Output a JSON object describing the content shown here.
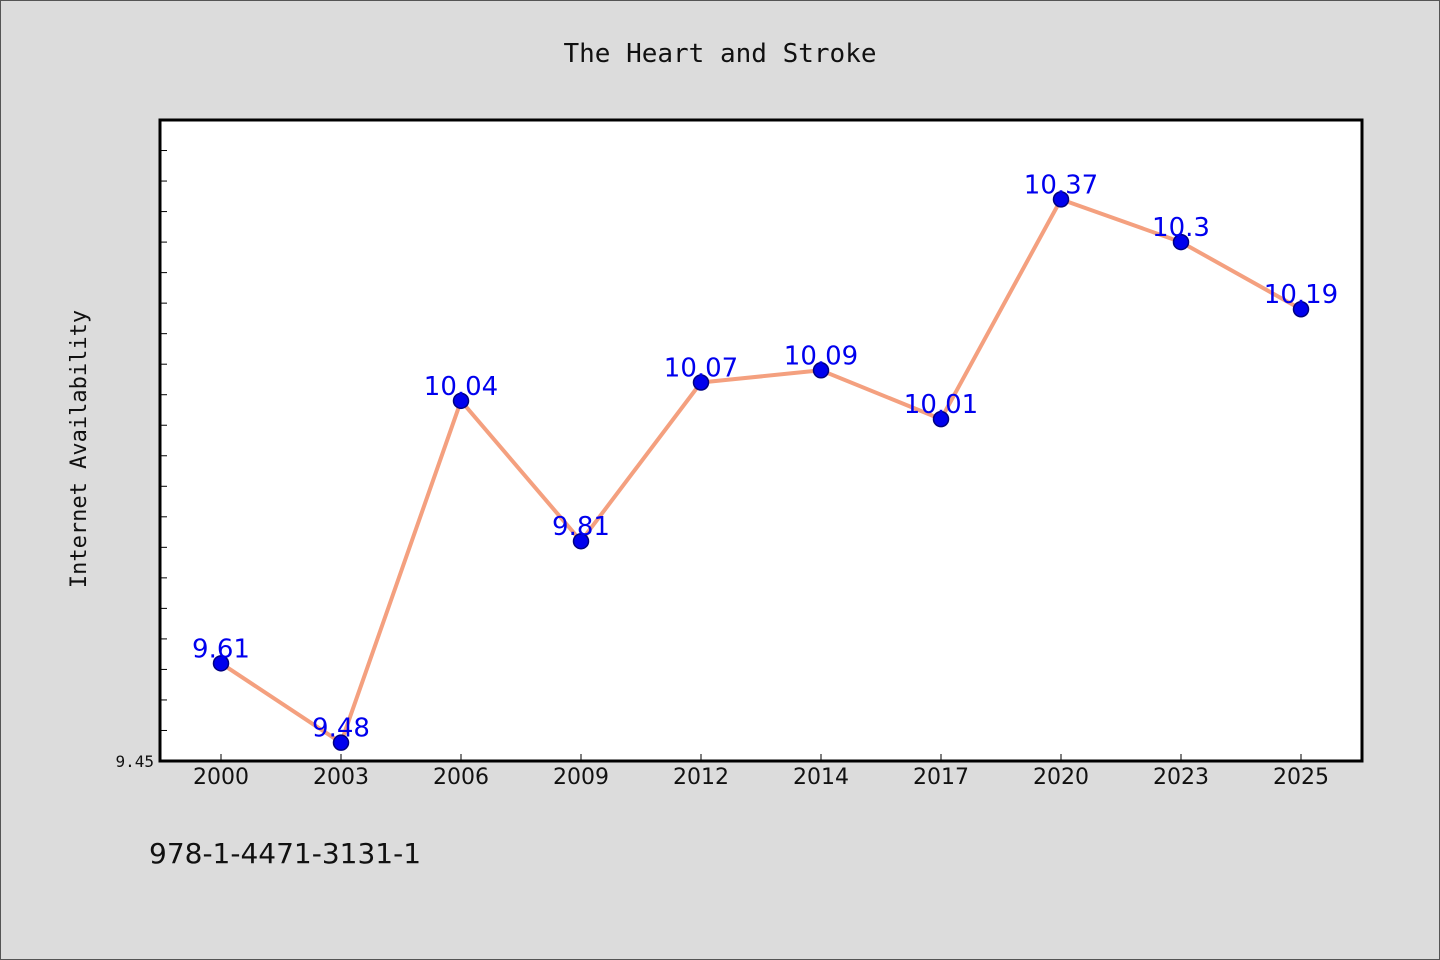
{
  "chart_data": {
    "type": "line",
    "title": "The Heart and Stroke",
    "xlabel": "",
    "ylabel": "Internet Availability",
    "categories": [
      "2000",
      "2003",
      "2006",
      "2009",
      "2012",
      "2014",
      "2017",
      "2020",
      "2023",
      "2025"
    ],
    "series": [
      {
        "values": [
          9.61,
          9.48,
          10.04,
          9.81,
          10.07,
          10.09,
          10.01,
          10.37,
          10.3,
          10.19
        ]
      }
    ],
    "data_labels": [
      "9.61",
      "9.48",
      "10.04",
      "9.81",
      "10.07",
      "10.09",
      "10.01",
      "10.37",
      "10.3",
      "10.19"
    ],
    "ytick_labels": [
      "9.45"
    ],
    "ylim": [
      9.45,
      10.5
    ],
    "grid": false,
    "colors": {
      "line": "#f4a07f",
      "marker_fill": "#0000ee",
      "marker_edge": "#000080",
      "data_label": "#0000ee",
      "background": "#dcdcdc",
      "plot_background": "#ffffff"
    }
  },
  "footer": {
    "text": "978-1-4471-3131-1"
  }
}
